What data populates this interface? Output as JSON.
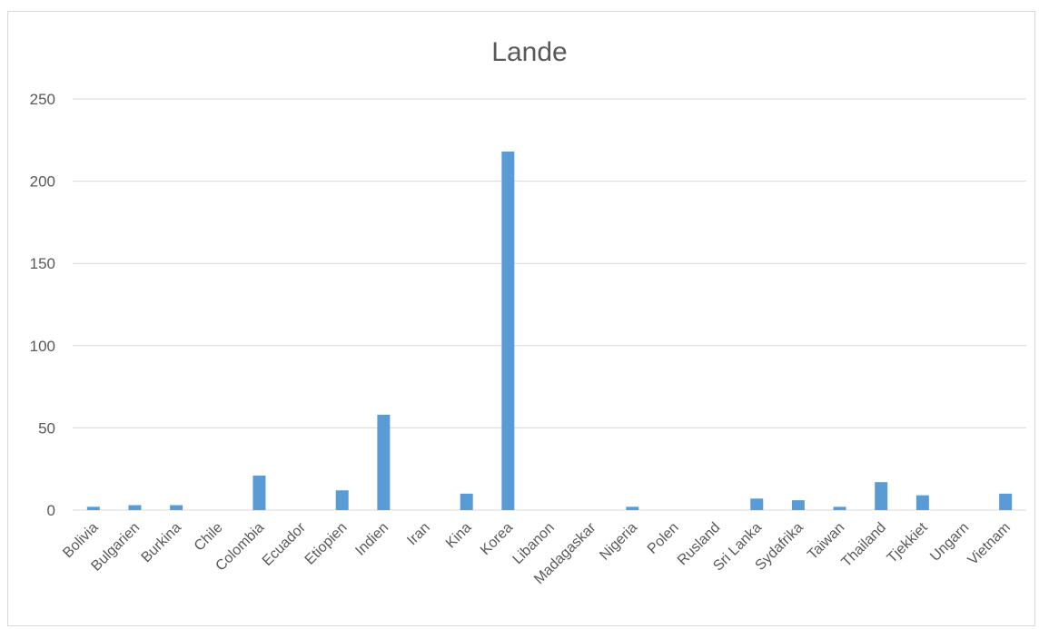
{
  "chart_data": {
    "type": "bar",
    "title": "Lande",
    "xlabel": "",
    "ylabel": "",
    "ylim": [
      0,
      250
    ],
    "yticks": [
      0,
      50,
      100,
      150,
      200,
      250
    ],
    "grid": true,
    "legend": "none",
    "bar_color": "#5b9bd5",
    "categories": [
      "Bolivia",
      "Bulgarien",
      "Burkina",
      "Chile",
      "Colombia",
      "Ecuador",
      "Etiopien",
      "Indien",
      "Iran",
      "Kina",
      "Korea",
      "Libanon",
      "Madagaskar",
      "Nigeria",
      "Polen",
      "Rusland",
      "Sri Lanka",
      "Sydafrika",
      "Taiwan",
      "Thailand",
      "Tjekkiet",
      "Ungarn",
      "Vietnam"
    ],
    "values": [
      2,
      3,
      3,
      0,
      21,
      0,
      12,
      58,
      0,
      10,
      218,
      0,
      0,
      2,
      0,
      0,
      7,
      6,
      2,
      17,
      9,
      0,
      10
    ]
  }
}
